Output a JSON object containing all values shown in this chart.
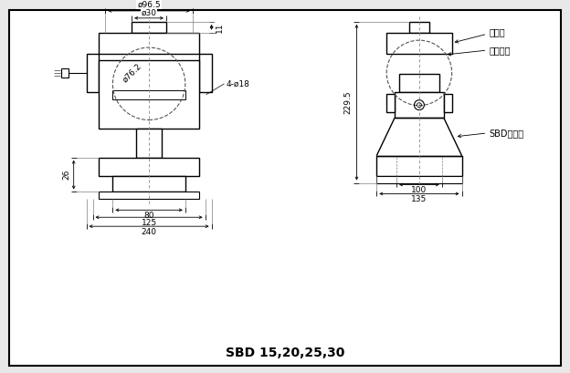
{
  "bg_color": "#e8e8e8",
  "drawing_bg": "#ffffff",
  "line_color": "#000000",
  "title": "SBD 15,20,25,30",
  "title_fontsize": 10,
  "label_fontsize": 7,
  "dim_fontsize": 6.5,
  "ann_right": [
    "承压头",
    "加载钒球",
    "SBD传感器"
  ],
  "dim_phi96": "ø96.5",
  "dim_phi30": "ø30",
  "dim_phi76": "ø76.2",
  "dim_11": "11",
  "dim_26": "26",
  "dim_80": "80",
  "dim_125": "125",
  "dim_240": "240",
  "dim_4phi18": "4-ø18",
  "dim_229": "229.5",
  "dim_100": "100",
  "dim_135": "135"
}
